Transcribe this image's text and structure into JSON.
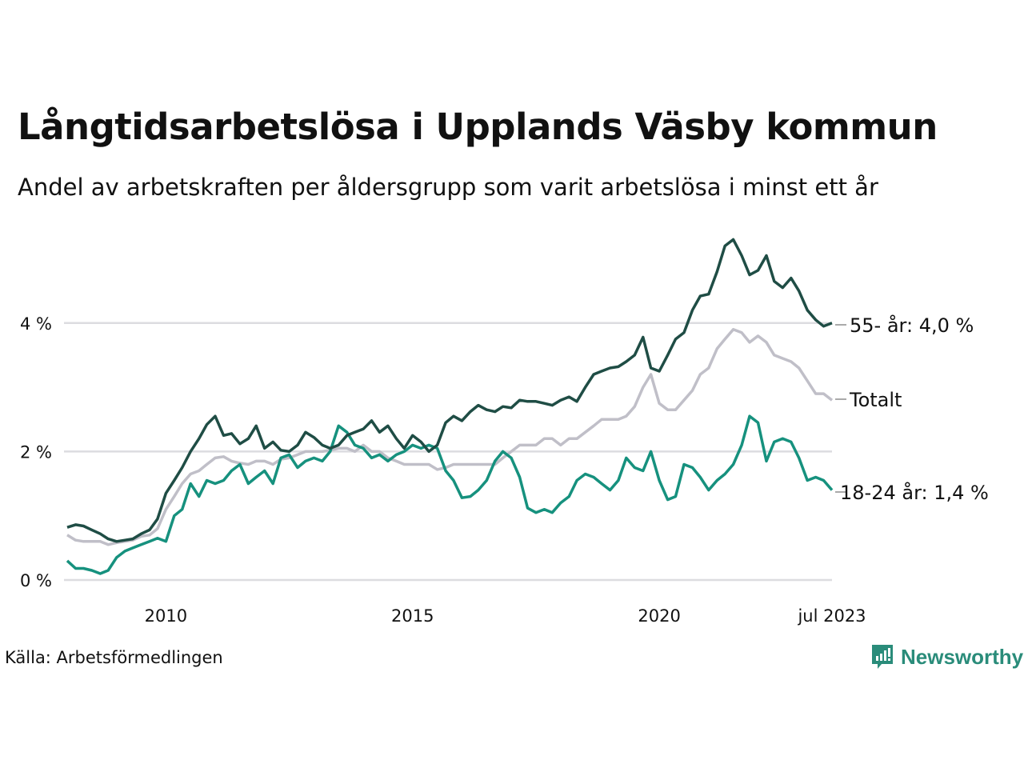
{
  "header": {
    "title": "Långtidsarbetslösa i Upplands Väsby kommun",
    "subtitle": "Andel av arbetskraften per åldersgrupp som varit arbetslösa i minst ett år"
  },
  "footer": {
    "source": "Källa: Arbetsförmedlingen",
    "brand": "Newsworthy",
    "brand_icon": "bar-chart-speech-bubble-icon",
    "brand_color": "#2a8c7a"
  },
  "chart_data": {
    "type": "line",
    "title": "Långtidsarbetslösa i Upplands Väsby kommun",
    "subtitle": "Andel av arbetskraften per åldersgrupp som varit arbetslösa i minst ett år",
    "xlabel": "",
    "ylabel": "",
    "x_range": [
      2008.0,
      2023.5
    ],
    "ylim": [
      0,
      5.3
    ],
    "y_ticks": [
      0,
      2,
      4
    ],
    "y_tick_labels": [
      "0 %",
      "2 %",
      "4 %"
    ],
    "x_ticks": [
      2010,
      2015,
      2020,
      2023.5
    ],
    "x_tick_labels": [
      "2010",
      "2015",
      "2020",
      "jul 2023"
    ],
    "grid": true,
    "legend": "direct labels at line ends (right)",
    "x": [
      2008.0,
      2008.17,
      2008.33,
      2008.5,
      2008.67,
      2008.83,
      2009.0,
      2009.17,
      2009.33,
      2009.5,
      2009.67,
      2009.83,
      2010.0,
      2010.17,
      2010.33,
      2010.5,
      2010.67,
      2010.83,
      2011.0,
      2011.17,
      2011.33,
      2011.5,
      2011.67,
      2011.83,
      2012.0,
      2012.17,
      2012.33,
      2012.5,
      2012.67,
      2012.83,
      2013.0,
      2013.17,
      2013.33,
      2013.5,
      2013.67,
      2013.83,
      2014.0,
      2014.17,
      2014.33,
      2014.5,
      2014.67,
      2014.83,
      2015.0,
      2015.17,
      2015.33,
      2015.5,
      2015.67,
      2015.83,
      2016.0,
      2016.17,
      2016.33,
      2016.5,
      2016.67,
      2016.83,
      2017.0,
      2017.17,
      2017.33,
      2017.5,
      2017.67,
      2017.83,
      2018.0,
      2018.17,
      2018.33,
      2018.5,
      2018.67,
      2018.83,
      2019.0,
      2019.17,
      2019.33,
      2019.5,
      2019.67,
      2019.83,
      2020.0,
      2020.17,
      2020.33,
      2020.5,
      2020.67,
      2020.83,
      2021.0,
      2021.17,
      2021.33,
      2021.5,
      2021.67,
      2021.83,
      2022.0,
      2022.17,
      2022.33,
      2022.5,
      2022.67,
      2022.83,
      2023.0,
      2023.17,
      2023.33,
      2023.5
    ],
    "series": [
      {
        "name": "55- år",
        "end_label": "55- år: 4,0 %",
        "last_value": 4.0,
        "color": "#1f4d45",
        "values": [
          0.82,
          0.86,
          0.84,
          0.78,
          0.72,
          0.64,
          0.6,
          0.62,
          0.64,
          0.72,
          0.78,
          0.95,
          1.35,
          1.55,
          1.75,
          2.0,
          2.2,
          2.42,
          2.55,
          2.25,
          2.28,
          2.12,
          2.2,
          2.4,
          2.05,
          2.15,
          2.02,
          2.0,
          2.1,
          2.3,
          2.22,
          2.1,
          2.05,
          2.1,
          2.25,
          2.3,
          2.35,
          2.48,
          2.3,
          2.4,
          2.2,
          2.05,
          2.25,
          2.15,
          2.0,
          2.1,
          2.45,
          2.55,
          2.48,
          2.62,
          2.72,
          2.65,
          2.62,
          2.7,
          2.68,
          2.8,
          2.78,
          2.78,
          2.75,
          2.72,
          2.8,
          2.85,
          2.78,
          3.0,
          3.2,
          3.25,
          3.3,
          3.32,
          3.4,
          3.5,
          3.78,
          3.3,
          3.25,
          3.5,
          3.75,
          3.85,
          4.2,
          4.42,
          4.45,
          4.8,
          5.2,
          5.3,
          5.05,
          4.75,
          4.82,
          5.05,
          4.65,
          4.55,
          4.7,
          4.5,
          4.2,
          4.05,
          3.95,
          4.0
        ]
      },
      {
        "name": "Totalt",
        "end_label": "Totalt",
        "last_value": 2.8,
        "color": "#c0bfc8",
        "values": [
          0.7,
          0.62,
          0.6,
          0.6,
          0.6,
          0.55,
          0.58,
          0.6,
          0.62,
          0.68,
          0.7,
          0.8,
          1.1,
          1.3,
          1.5,
          1.65,
          1.7,
          1.8,
          1.9,
          1.92,
          1.85,
          1.82,
          1.8,
          1.85,
          1.85,
          1.8,
          1.88,
          1.9,
          1.95,
          2.0,
          2.0,
          2.0,
          2.02,
          2.05,
          2.05,
          2.0,
          2.1,
          2.0,
          2.0,
          1.9,
          1.85,
          1.8,
          1.8,
          1.8,
          1.8,
          1.72,
          1.75,
          1.8,
          1.8,
          1.8,
          1.8,
          1.8,
          1.8,
          1.9,
          2.0,
          2.1,
          2.1,
          2.1,
          2.2,
          2.2,
          2.1,
          2.2,
          2.2,
          2.3,
          2.4,
          2.5,
          2.5,
          2.5,
          2.55,
          2.7,
          3.0,
          3.2,
          2.75,
          2.65,
          2.65,
          2.8,
          2.95,
          3.2,
          3.3,
          3.6,
          3.75,
          3.9,
          3.85,
          3.7,
          3.8,
          3.7,
          3.5,
          3.45,
          3.4,
          3.3,
          3.1,
          2.9,
          2.9,
          2.8
        ]
      },
      {
        "name": "18-24 år",
        "end_label": "18-24 år: 1,4 %",
        "last_value": 1.4,
        "color": "#16917e",
        "values": [
          0.3,
          0.18,
          0.18,
          0.15,
          0.1,
          0.15,
          0.35,
          0.45,
          0.5,
          0.55,
          0.6,
          0.65,
          0.6,
          1.0,
          1.1,
          1.5,
          1.3,
          1.55,
          1.5,
          1.55,
          1.7,
          1.8,
          1.5,
          1.6,
          1.7,
          1.5,
          1.9,
          1.95,
          1.75,
          1.85,
          1.9,
          1.85,
          2.0,
          2.4,
          2.3,
          2.1,
          2.05,
          1.9,
          1.95,
          1.85,
          1.95,
          2.0,
          2.1,
          2.05,
          2.1,
          2.05,
          1.7,
          1.55,
          1.28,
          1.3,
          1.4,
          1.55,
          1.85,
          2.0,
          1.9,
          1.6,
          1.12,
          1.05,
          1.1,
          1.05,
          1.2,
          1.3,
          1.55,
          1.65,
          1.6,
          1.5,
          1.4,
          1.55,
          1.9,
          1.75,
          1.7,
          2.0,
          1.55,
          1.25,
          1.3,
          1.8,
          1.75,
          1.6,
          1.4,
          1.55,
          1.65,
          1.8,
          2.1,
          2.55,
          2.45,
          1.85,
          2.15,
          2.2,
          2.15,
          1.9,
          1.55,
          1.6,
          1.55,
          1.4
        ]
      }
    ]
  }
}
